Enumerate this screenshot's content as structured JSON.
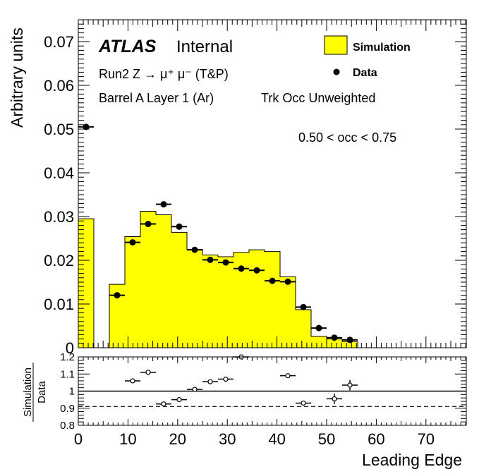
{
  "chart_data": {
    "type": "histogram-ratio",
    "labels": {
      "atlas": "ATLAS",
      "internal": "Internal",
      "process": "Run2 Z → μ⁺ μ⁻ (T&P)",
      "region": "Barrel A Layer 1 (Ar)",
      "weighting": "Trk Occ Unweighted",
      "occ_range": "0.50 < occ < 0.75"
    },
    "legend": {
      "placement": "top-right",
      "simulation": "Simulation",
      "data": "Data"
    },
    "xlabel": "Leading Edge",
    "ylabel": "Arbitrary units",
    "ratio_ylabel_num": "Simulation",
    "ratio_ylabel_den": "Data",
    "xlim": [
      0,
      78.125
    ],
    "ylim": [
      0,
      0.075
    ],
    "ratio_ylim": [
      0.8,
      1.2
    ],
    "x_ticks": [
      "0",
      "10",
      "20",
      "30",
      "40",
      "50",
      "60",
      "70"
    ],
    "y_ticks": [
      "0",
      "0.01",
      "0.02",
      "0.03",
      "0.04",
      "0.05",
      "0.06",
      "0.07"
    ],
    "ratio_ticks": [
      "0.8",
      "0.9",
      "1",
      "1.1",
      "1.2"
    ],
    "ratio_dashed_line": 0.91,
    "colors": {
      "simulation_fill": "#ffff00",
      "data_marker": "#000000"
    },
    "bin_width": 3.125,
    "bin_low_edges": [
      0,
      3.125,
      6.25,
      9.375,
      12.5,
      15.625,
      18.75,
      21.875,
      25,
      28.125,
      31.25,
      34.375,
      37.5,
      40.625,
      43.75,
      46.875,
      50,
      53.125,
      56.25,
      59.375,
      62.5,
      65.625,
      68.75,
      71.875,
      75
    ],
    "simulation": [
      0.0295,
      0,
      0.0145,
      0.0254,
      0.0312,
      0.0304,
      0.0264,
      0.0225,
      0.0212,
      0.0208,
      0.0218,
      0.0224,
      0.022,
      0.0162,
      0.0087,
      0.0026,
      0.002,
      0.0014,
      0,
      0,
      0,
      0,
      0,
      0,
      0
    ],
    "data": [
      {
        "x": 1.5625,
        "y": 0.0505
      },
      {
        "x": 7.8125,
        "y": 0.012
      },
      {
        "x": 10.9375,
        "y": 0.0241
      },
      {
        "x": 14.0625,
        "y": 0.0283
      },
      {
        "x": 17.1875,
        "y": 0.0328
      },
      {
        "x": 20.3125,
        "y": 0.0277
      },
      {
        "x": 23.4375,
        "y": 0.0224
      },
      {
        "x": 26.5625,
        "y": 0.0201
      },
      {
        "x": 29.6875,
        "y": 0.0195
      },
      {
        "x": 32.8125,
        "y": 0.0181
      },
      {
        "x": 35.9375,
        "y": 0.0177
      },
      {
        "x": 39.0625,
        "y": 0.0153
      },
      {
        "x": 42.1875,
        "y": 0.0151
      },
      {
        "x": 45.3125,
        "y": 0.0093
      },
      {
        "x": 48.4375,
        "y": 0.0045
      },
      {
        "x": 51.5625,
        "y": 0.0023
      },
      {
        "x": 54.6875,
        "y": 0.0018
      }
    ],
    "ratio": [
      {
        "x": 10.9375,
        "y": 1.06,
        "yerr": 0
      },
      {
        "x": 14.0625,
        "y": 1.11,
        "yerr": 0
      },
      {
        "x": 17.1875,
        "y": 0.925,
        "yerr": 0
      },
      {
        "x": 20.3125,
        "y": 0.95,
        "yerr": 0
      },
      {
        "x": 23.4375,
        "y": 1.01,
        "yerr": 0
      },
      {
        "x": 26.5625,
        "y": 1.055,
        "yerr": 0
      },
      {
        "x": 29.6875,
        "y": 1.07,
        "yerr": 0
      },
      {
        "x": 32.8125,
        "y": 1.2,
        "yerr": 0
      },
      {
        "x": 42.1875,
        "y": 1.09,
        "yerr": 0
      },
      {
        "x": 45.3125,
        "y": 0.93,
        "yerr": 0
      },
      {
        "x": 51.5625,
        "y": 0.955,
        "yerr": 0.03
      },
      {
        "x": 54.6875,
        "y": 1.035,
        "yerr": 0.03
      }
    ]
  }
}
